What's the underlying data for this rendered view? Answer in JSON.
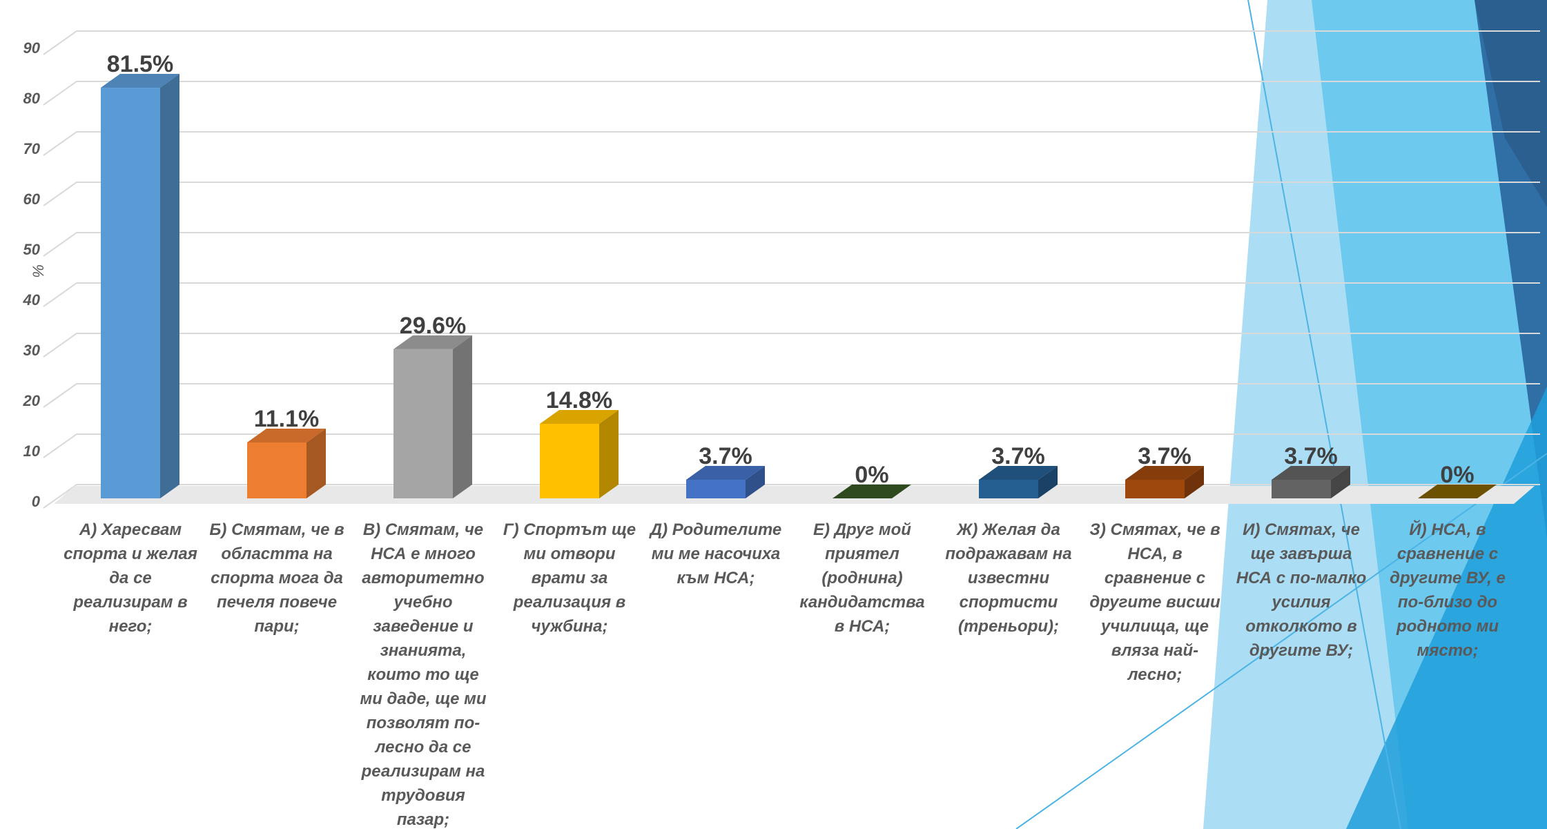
{
  "chart_data": {
    "type": "bar3d",
    "y_label": "%",
    "categories": [
      "А) Харесвам спорта и желая да се реализирам в него;",
      "Б) Смятам, че в областта на спорта мога да печеля повече пари;",
      "В) Смятам, че НСА е много авторитетно учебно заведение и знанията, които то ще ми даде, ще ми позволят по-лесно да се реализирам на трудовия пазар;",
      "Г) Спортът ще ми отвори врати за реализация в чужбина;",
      "Д) Родителите ми ме насочиха към НСА;",
      "Е) Друг мой приятел (роднина) кандидатства в НСА;",
      "Ж) Желая да подражавам на известни спортисти (треньори);",
      "З) Смятах, че в НСА, в сравнение с другите висши училища, ще вляза най-лесно;",
      "И) Смятах, че ще завърша НСА с по-малко усилия отколкото в другите ВУ;",
      "Й) НСА, в сравнение с другите ВУ, е по-близо до родното ми място;"
    ],
    "values": [
      81.5,
      11.1,
      29.6,
      14.8,
      3.7,
      0,
      3.7,
      3.7,
      3.7,
      0
    ],
    "value_labels": [
      "81.5%",
      "11.1%",
      "29.6%",
      "14.8%",
      "3.7%",
      "0%",
      "3.7%",
      "3.7%",
      "3.7%",
      "0%"
    ],
    "colors": [
      "#5b9bd5",
      "#ed7d31",
      "#a5a5a5",
      "#ffc000",
      "#4472c4",
      "#375623",
      "#255e91",
      "#9e480e",
      "#636363",
      "#7f6000"
    ],
    "ylim": [
      0,
      90
    ],
    "yticks": [
      0,
      10,
      20,
      30,
      40,
      50,
      60,
      70,
      80,
      90
    ],
    "grid": true
  }
}
